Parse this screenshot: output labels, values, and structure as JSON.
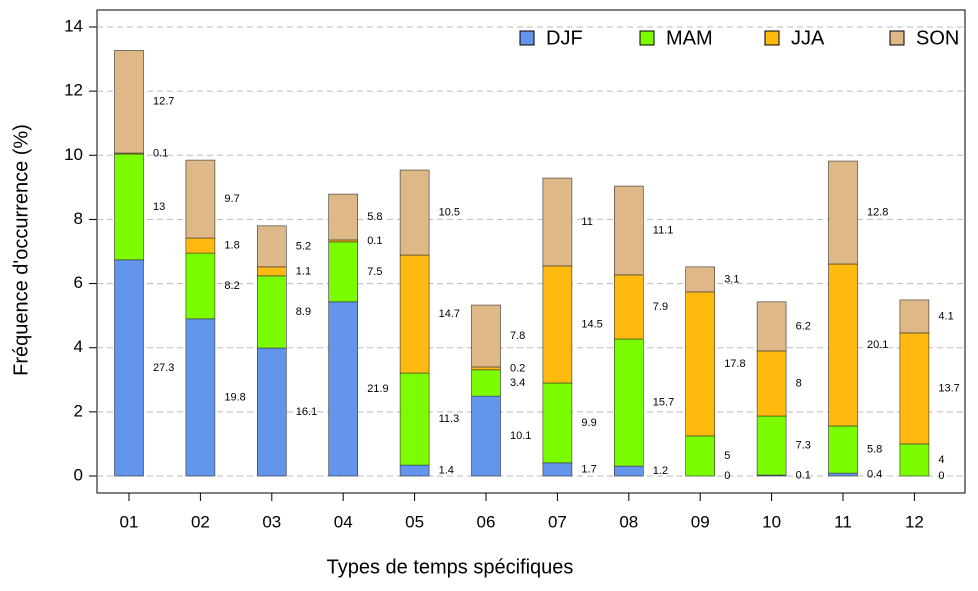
{
  "chart_data": {
    "type": "stacked-bar",
    "x_label": "Types de temps spécifiques",
    "y_label": "Fréquence d'occurrence (%)",
    "categories": [
      "01",
      "02",
      "03",
      "04",
      "05",
      "06",
      "07",
      "08",
      "09",
      "10",
      "11",
      "12"
    ],
    "ylim": [
      0,
      14
    ],
    "yticks": [
      0,
      2,
      4,
      6,
      8,
      10,
      12,
      14
    ],
    "grid": true,
    "legend": "top-right",
    "series": [
      {
        "name": "DJF",
        "color": "#6495ed",
        "values": [
          6.74,
          4.9,
          3.99,
          5.43,
          0.34,
          2.49,
          0.41,
          0.31,
          0,
          0.03,
          0.09,
          0
        ],
        "annotations": [
          27.3,
          19.8,
          16.1,
          21.9,
          1.4,
          10.1,
          1.7,
          1.2,
          0,
          0.1,
          0.4,
          0
        ]
      },
      {
        "name": "MAM",
        "color": "#7cfc00",
        "values": [
          3.3,
          2.05,
          2.25,
          1.87,
          2.87,
          0.82,
          2.49,
          3.96,
          1.25,
          1.84,
          1.47,
          1.0
        ],
        "annotations": [
          13,
          8.2,
          8.9,
          7.5,
          11.3,
          3.4,
          9.9,
          15.7,
          5,
          7.3,
          5.8,
          4
        ]
      },
      {
        "name": "JJA",
        "color": "#ffb90f",
        "values": [
          0.03,
          0.47,
          0.28,
          0.06,
          3.68,
          0.09,
          3.65,
          2.0,
          4.49,
          2.03,
          5.05,
          3.46
        ],
        "annotations": [
          0.1,
          1.8,
          1.1,
          0.1,
          14.7,
          0.2,
          14.5,
          7.9,
          17.8,
          8,
          20.1,
          13.7
        ]
      },
      {
        "name": "SON",
        "color": "#deb887",
        "values": [
          3.2,
          2.43,
          1.28,
          1.43,
          2.65,
          1.93,
          2.74,
          2.77,
          0.78,
          1.53,
          3.21,
          1.03
        ],
        "annotations": [
          12.7,
          9.7,
          5.2,
          5.8,
          10.5,
          7.8,
          11,
          11.1,
          3.1,
          6.2,
          12.8,
          4.1
        ]
      }
    ]
  }
}
